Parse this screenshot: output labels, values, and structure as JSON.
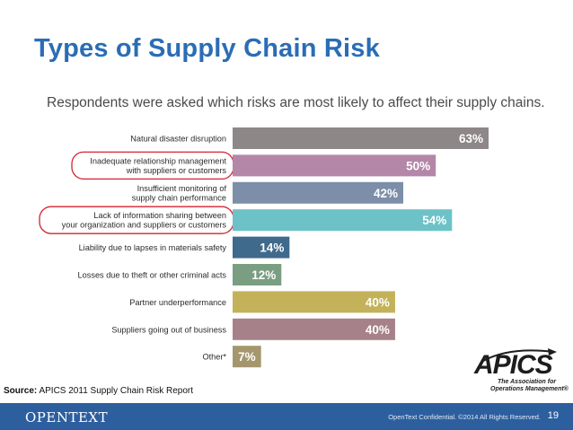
{
  "slide": {
    "title": "Types of Supply Chain Risk",
    "source_label": "Source:",
    "source_text": " APICS 2011 Supply Chain Risk Report",
    "footer_logo": "OPENTEXT",
    "footer_confidential": "OpenText Confidential. ©2014 All Rights Reserved.",
    "page_number": "19",
    "apics_logo": "APICS",
    "apics_tagline_1": "The Association for",
    "apics_tagline_2": "Operations Management®"
  },
  "chart_data": {
    "type": "bar",
    "orientation": "horizontal",
    "title": "Respondents were asked which risks are most likely to affect their supply chains.",
    "categories": [
      [
        "Natural disaster disruption"
      ],
      [
        "Inadequate relationship management",
        "with suppliers or customers"
      ],
      [
        "Insufficient monitoring of",
        "supply chain performance"
      ],
      [
        "Lack of information sharing between",
        "your organization and suppliers or customers"
      ],
      [
        "Liability due to lapses in materials safety"
      ],
      [
        "Losses due to theft or other criminal acts"
      ],
      [
        "Partner underperformance"
      ],
      [
        "Suppliers going out of business"
      ],
      [
        "Other*"
      ]
    ],
    "values": [
      63,
      50,
      42,
      54,
      14,
      12,
      40,
      40,
      7
    ],
    "value_labels": [
      "63%",
      "50%",
      "42%",
      "54%",
      "14%",
      "12%",
      "40%",
      "40%",
      "7%"
    ],
    "colors": [
      "#8e8788",
      "#b486a8",
      "#7c8ea8",
      "#6cc2c7",
      "#3f6a8c",
      "#7a9e82",
      "#c3b25a",
      "#a7818a",
      "#a4976d"
    ],
    "highlighted": [
      false,
      true,
      false,
      true,
      false,
      false,
      false,
      false,
      false
    ],
    "highlight_color": "#d3232f",
    "xlim": [
      0,
      63
    ]
  }
}
